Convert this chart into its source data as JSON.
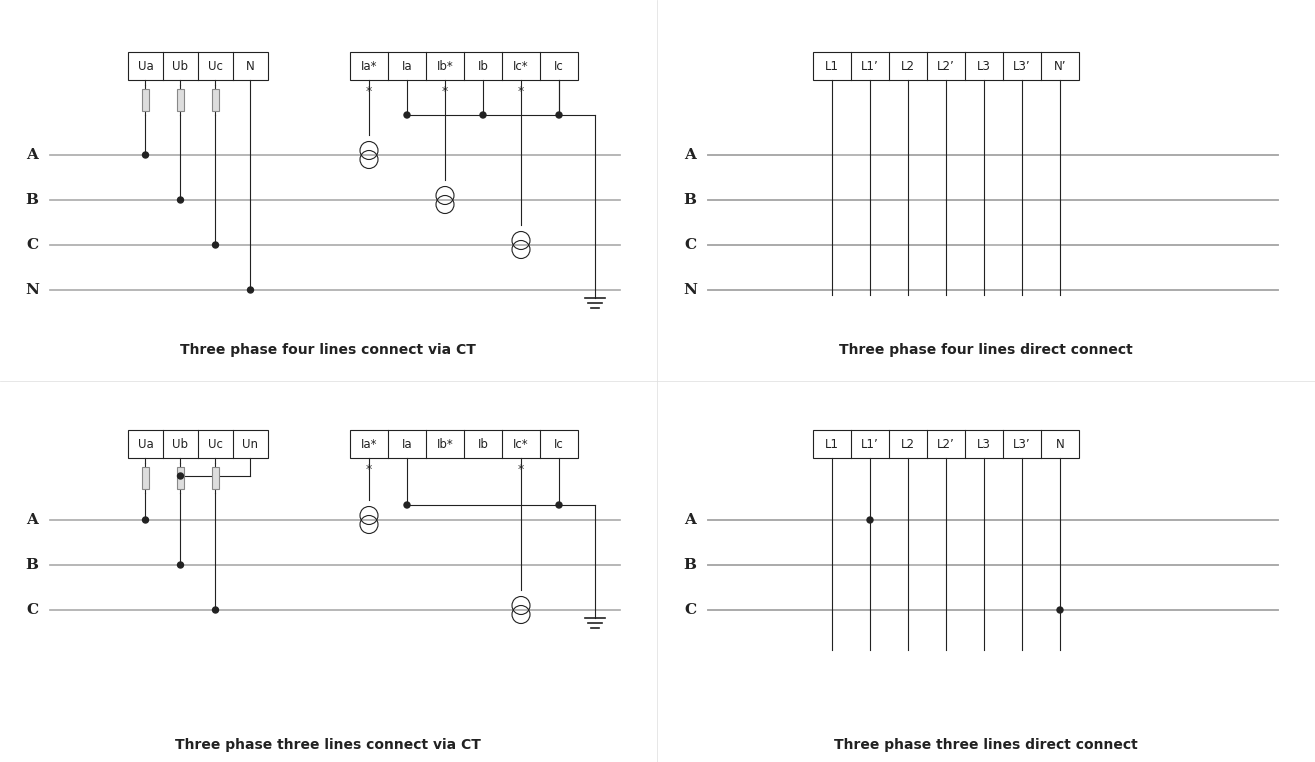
{
  "bg_color": "#ffffff",
  "line_color": "#aaaaaa",
  "dark_color": "#222222",
  "wire_color": "#444444",
  "titles": [
    "Three phase four lines connect via CT",
    "Three phase four lines direct connect",
    "Three phase three lines connect via CT",
    "Three phase three lines direct connect"
  ],
  "v_labels_4ct": [
    "Ua",
    "Ub",
    "Uc",
    "N"
  ],
  "i_labels_ct": [
    "Ia*",
    "Ia",
    "Ib*",
    "Ib",
    "Ic*",
    "Ic"
  ],
  "v_labels_4direct": [
    "L1",
    "L1’",
    "L2",
    "L2’",
    "L3",
    "L3’",
    "N’"
  ],
  "v_labels_3ct": [
    "Ua",
    "Ub",
    "Uc",
    "Un"
  ],
  "i_labels_3ct": [
    "Ia*",
    "Ia",
    "Ib*",
    "Ib",
    "Ic*",
    "Ic"
  ],
  "v_labels_3direct": [
    "L1",
    "L1’",
    "L2",
    "L2’",
    "L3",
    "L3’",
    "N"
  ]
}
